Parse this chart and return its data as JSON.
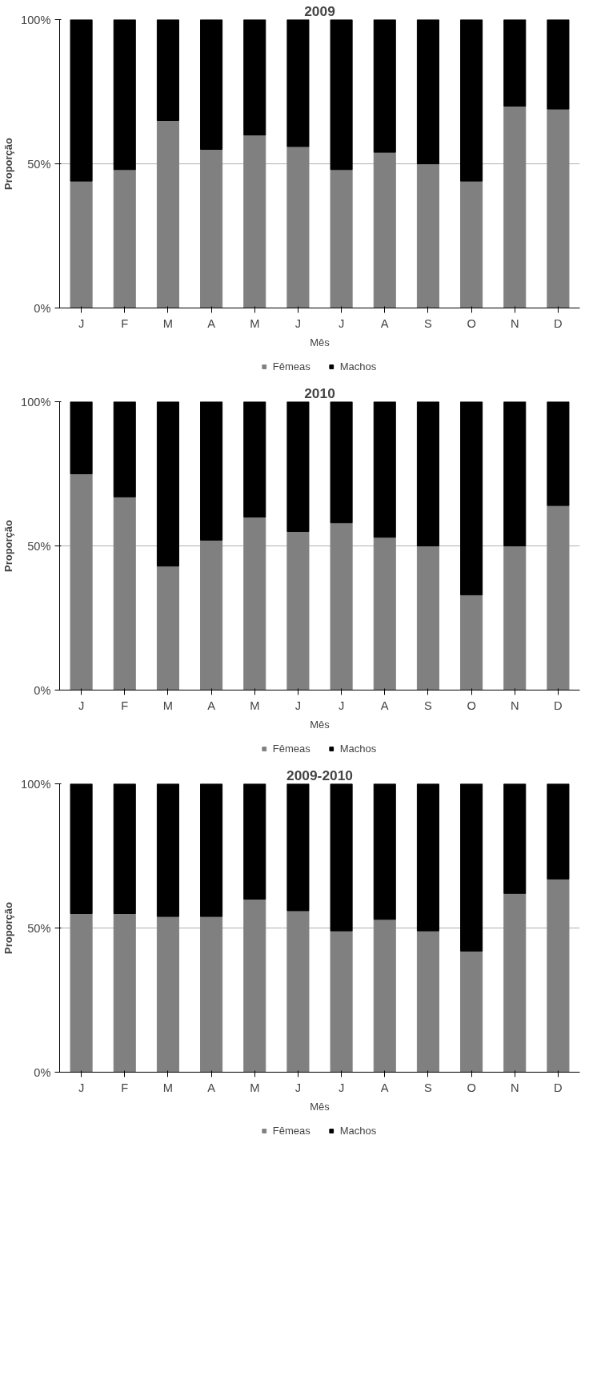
{
  "chart_data": [
    {
      "type": "bar",
      "title": "2009",
      "xlabel": "Mês",
      "ylabel": "Proporção",
      "categories": [
        "J",
        "F",
        "M",
        "A",
        "M",
        "J",
        "J",
        "A",
        "S",
        "O",
        "N",
        "D"
      ],
      "stacked": true,
      "series": [
        {
          "name": "Fêmeas",
          "color": "#808080",
          "values": [
            44,
            48,
            65,
            55,
            60,
            56,
            48,
            54,
            50,
            44,
            70,
            69
          ]
        },
        {
          "name": "Machos",
          "color": "#000000",
          "values": [
            56,
            52,
            35,
            45,
            40,
            44,
            52,
            46,
            50,
            56,
            30,
            31
          ]
        }
      ],
      "ylim": [
        0,
        100
      ],
      "yticks": [
        {
          "value": 0,
          "label": "0%"
        },
        {
          "value": 50,
          "label": "50%"
        },
        {
          "value": 100,
          "label": "100%"
        }
      ],
      "grid": "y",
      "legend": "bottom"
    },
    {
      "type": "bar",
      "title": "2010",
      "xlabel": "Mês",
      "ylabel": "Proporção",
      "categories": [
        "J",
        "F",
        "M",
        "A",
        "M",
        "J",
        "J",
        "A",
        "S",
        "O",
        "N",
        "D"
      ],
      "stacked": true,
      "series": [
        {
          "name": "Fêmeas",
          "color": "#808080",
          "values": [
            75,
            67,
            43,
            52,
            60,
            55,
            58,
            53,
            50,
            33,
            50,
            64
          ]
        },
        {
          "name": "Machos",
          "color": "#000000",
          "values": [
            25,
            33,
            57,
            48,
            40,
            45,
            42,
            47,
            50,
            67,
            50,
            36
          ]
        }
      ],
      "ylim": [
        0,
        100
      ],
      "yticks": [
        {
          "value": 0,
          "label": "0%"
        },
        {
          "value": 50,
          "label": "50%"
        },
        {
          "value": 100,
          "label": "100%"
        }
      ],
      "grid": "y",
      "legend": "bottom"
    },
    {
      "type": "bar",
      "title": "2009-2010",
      "xlabel": "Mês",
      "ylabel": "Proporção",
      "categories": [
        "J",
        "F",
        "M",
        "A",
        "M",
        "J",
        "J",
        "A",
        "S",
        "O",
        "N",
        "D"
      ],
      "stacked": true,
      "series": [
        {
          "name": "Fêmeas",
          "color": "#808080",
          "values": [
            55,
            55,
            54,
            54,
            60,
            56,
            49,
            53,
            49,
            42,
            62,
            67
          ]
        },
        {
          "name": "Machos",
          "color": "#000000",
          "values": [
            45,
            45,
            46,
            46,
            40,
            44,
            51,
            47,
            51,
            58,
            38,
            33
          ]
        }
      ],
      "ylim": [
        0,
        100
      ],
      "yticks": [
        {
          "value": 0,
          "label": "0%"
        },
        {
          "value": 50,
          "label": "50%"
        },
        {
          "value": 100,
          "label": "100%"
        }
      ],
      "grid": "y",
      "legend": "bottom"
    }
  ]
}
